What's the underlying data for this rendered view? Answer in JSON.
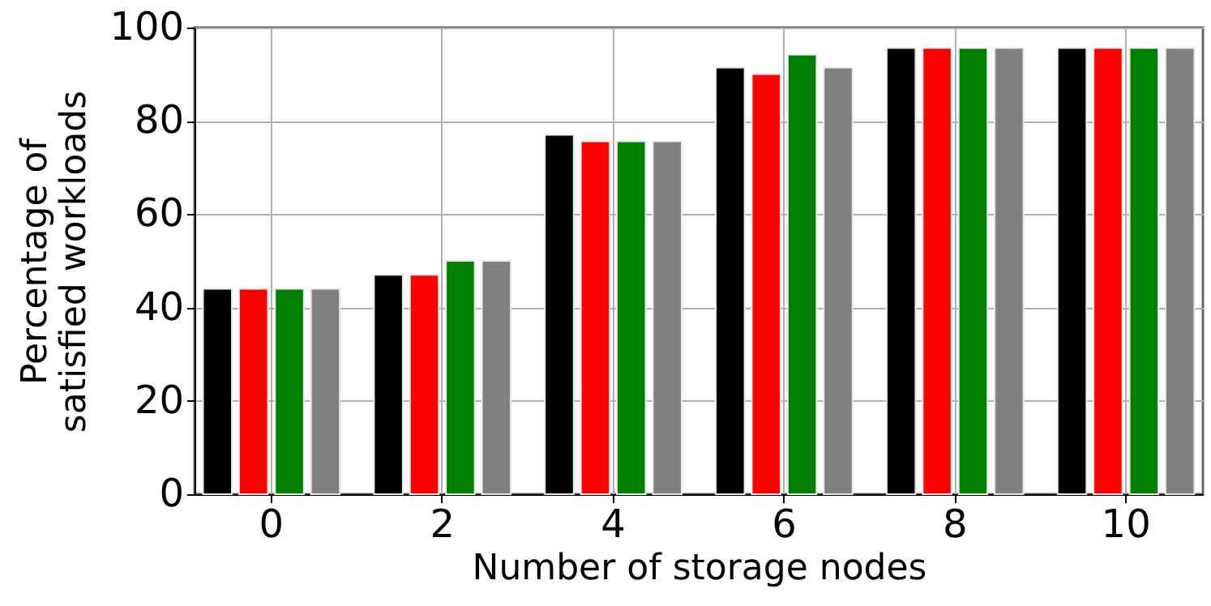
{
  "chart_data": {
    "type": "bar",
    "xlabel": "Number of storage nodes",
    "ylabel": "Percentage of\nsatisfied workloads",
    "categories": [
      "0",
      "2",
      "4",
      "6",
      "8",
      "10"
    ],
    "series": [
      {
        "color": "#000000",
        "values": [
          44,
          47,
          77,
          91.4,
          95.6,
          95.6
        ]
      },
      {
        "color": "#ff0000",
        "values": [
          44,
          47,
          75.6,
          90,
          95.6,
          95.6
        ]
      },
      {
        "color": "#008000",
        "values": [
          44,
          50,
          75.6,
          94.2,
          95.6,
          95.6
        ]
      },
      {
        "color": "#808080",
        "values": [
          44,
          50,
          75.6,
          91.4,
          95.6,
          95.6
        ]
      }
    ],
    "ylim": [
      0,
      100
    ],
    "yticks": [
      0,
      20,
      40,
      60,
      80,
      100
    ],
    "grid": true
  }
}
